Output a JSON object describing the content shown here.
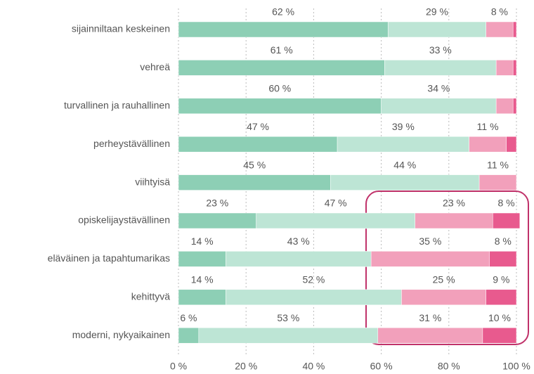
{
  "chart_data": {
    "type": "stacked-bar-horizontal",
    "categories": [
      "sijainniltaan keskeinen",
      "vehreä",
      "turvallinen ja rauhallinen",
      "perheystävällinen",
      "viihtyisä",
      "opiskelijaystävällinen",
      "eläväinen ja tapahtumarikas",
      "kehittyvä",
      "moderni, nykyaikainen"
    ],
    "series": [
      {
        "color": "#8dcfb5",
        "values": [
          62,
          61,
          60,
          47,
          45,
          23,
          14,
          14,
          6
        ],
        "value_labels": [
          "62 %",
          "61 %",
          "60 %",
          "47 %",
          "45 %",
          "23 %",
          "14 %",
          "14 %",
          "6 %"
        ]
      },
      {
        "color": "#bde5d5",
        "values": [
          29,
          33,
          34,
          39,
          44,
          47,
          43,
          52,
          53
        ],
        "value_labels": [
          "29 %",
          "33 %",
          "34 %",
          "39 %",
          "44 %",
          "47 %",
          "43 %",
          "52 %",
          "53 %"
        ]
      },
      {
        "color": "#f2a0bb",
        "values": [
          8,
          5,
          5,
          11,
          11,
          23,
          35,
          25,
          31
        ],
        "value_labels": [
          "8 %",
          null,
          null,
          "11 %",
          "11 %",
          "23 %",
          "35 %",
          "25 %",
          "31 %"
        ]
      },
      {
        "color": "#e85a8e",
        "values": [
          1,
          1,
          1,
          3,
          0,
          8,
          8,
          9,
          10
        ],
        "value_labels": [
          null,
          null,
          null,
          null,
          null,
          "8 %",
          "8 %",
          "9 %",
          "10 %"
        ]
      }
    ],
    "xlim": [
      0,
      100
    ],
    "xticks": [
      {
        "value": 0,
        "label": "0 %"
      },
      {
        "value": 20,
        "label": "20 %"
      },
      {
        "value": 40,
        "label": "40 %"
      },
      {
        "value": 60,
        "label": "60 %"
      },
      {
        "value": 80,
        "label": "80 %"
      },
      {
        "value": 100,
        "label": "100 %"
      }
    ],
    "grid": true
  }
}
